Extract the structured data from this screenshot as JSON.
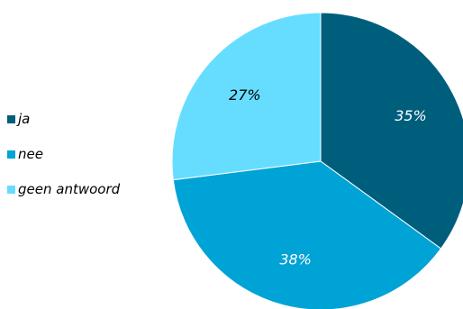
{
  "chart_data": {
    "type": "pie",
    "title": "",
    "slices": [
      {
        "label": "ja",
        "value": 35,
        "display": "35%",
        "color": "#005e7d",
        "label_color": "#ffffff"
      },
      {
        "label": "nee",
        "value": 38,
        "display": "38%",
        "color": "#00a3d6",
        "label_color": "#ffffff"
      },
      {
        "label": "geen antwoord",
        "value": 27,
        "display": "27%",
        "color": "#66ddff",
        "label_color": "#000000"
      }
    ],
    "start_angle_deg": 0,
    "direction": "clockwise",
    "legend_position": "left"
  }
}
